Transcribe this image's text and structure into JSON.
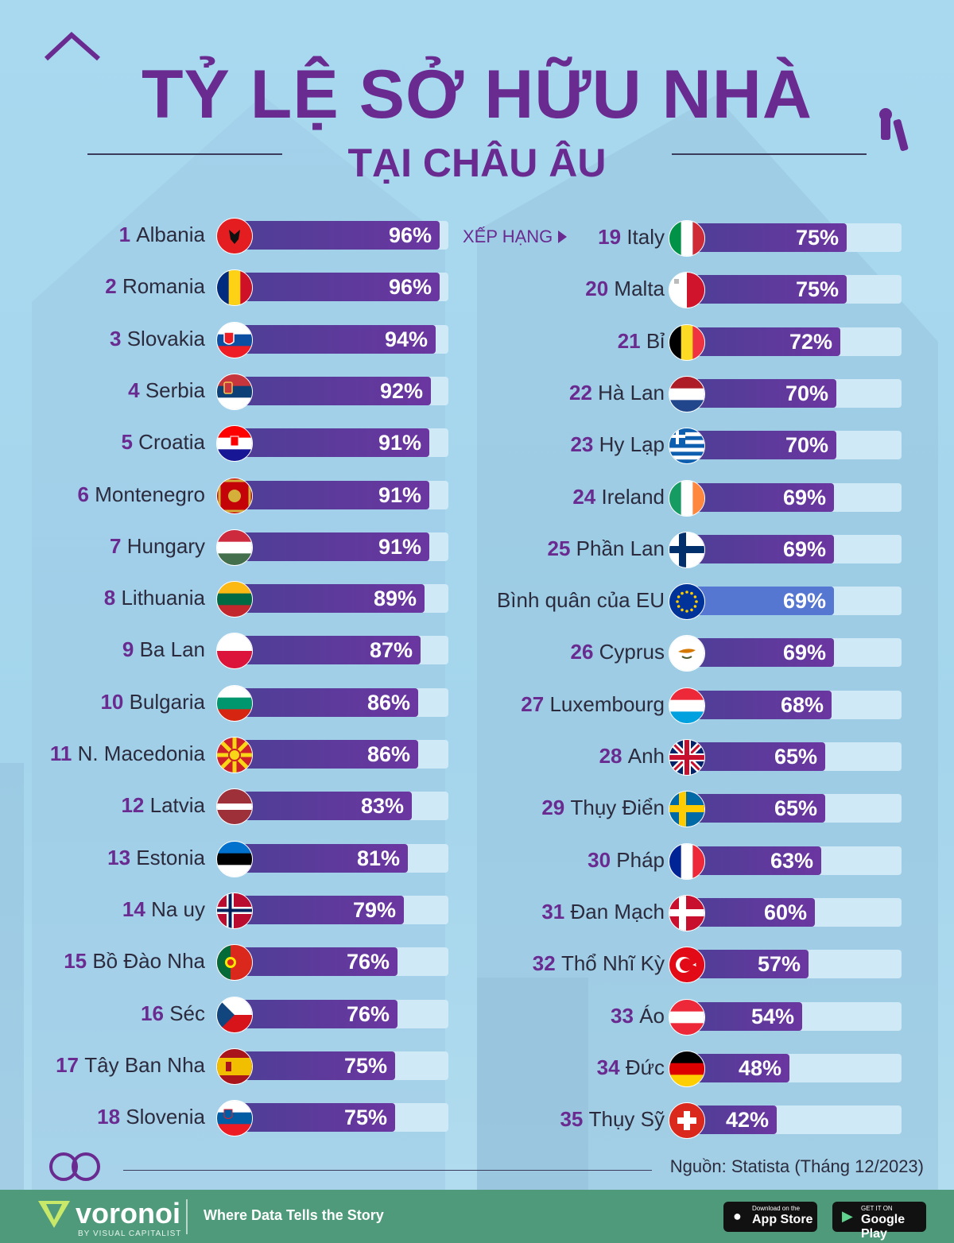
{
  "title": "TỶ LỆ SỞ HỮU NHÀ",
  "subtitle": "TẠI CHÂU ÂU",
  "rank_hint": "XẾP HẠNG",
  "source": "Nguồn: Statista (Tháng 12/2023)",
  "footer": {
    "brand": "voronoi",
    "brand_sub": "BY VISUAL CAPITALIST",
    "tagline": "Where Data Tells the Story",
    "appstore_small": "Download on the",
    "appstore_big": "App Store",
    "googleplay_small": "GET IT ON",
    "googleplay_big": "Google Play"
  },
  "colors": {
    "title": "#6a2b91",
    "bar": "#5a3a9b",
    "bar_avg": "#5577d1",
    "track": "#cfe9f6",
    "footer": "#4e9a7a"
  },
  "chart_data": {
    "type": "bar",
    "orientation": "horizontal",
    "xlim": [
      0,
      100
    ],
    "unit": "%",
    "items": [
      {
        "rank": "1",
        "country": "Albania",
        "value": 96,
        "label": "96%",
        "flag": "albania"
      },
      {
        "rank": "2",
        "country": "Romania",
        "value": 96,
        "label": "96%",
        "flag": "romania"
      },
      {
        "rank": "3",
        "country": "Slovakia",
        "value": 94,
        "label": "94%",
        "flag": "slovakia"
      },
      {
        "rank": "4",
        "country": "Serbia",
        "value": 92,
        "label": "92%",
        "flag": "serbia"
      },
      {
        "rank": "5",
        "country": "Croatia",
        "value": 91,
        "label": "91%",
        "flag": "croatia"
      },
      {
        "rank": "6",
        "country": "Montenegro",
        "value": 91,
        "label": "91%",
        "flag": "montenegro"
      },
      {
        "rank": "7",
        "country": "Hungary",
        "value": 91,
        "label": "91%",
        "flag": "hungary"
      },
      {
        "rank": "8",
        "country": "Lithuania",
        "value": 89,
        "label": "89%",
        "flag": "lithuania"
      },
      {
        "rank": "9",
        "country": "Ba Lan",
        "value": 87,
        "label": "87%",
        "flag": "poland"
      },
      {
        "rank": "10",
        "country": "Bulgaria",
        "value": 86,
        "label": "86%",
        "flag": "bulgaria"
      },
      {
        "rank": "11",
        "country": "N. Macedonia",
        "value": 86,
        "label": "86%",
        "flag": "macedonia"
      },
      {
        "rank": "12",
        "country": "Latvia",
        "value": 83,
        "label": "83%",
        "flag": "latvia"
      },
      {
        "rank": "13",
        "country": "Estonia",
        "value": 81,
        "label": "81%",
        "flag": "estonia"
      },
      {
        "rank": "14",
        "country": "Na uy",
        "value": 79,
        "label": "79%",
        "flag": "norway"
      },
      {
        "rank": "15",
        "country": "Bồ Đào Nha",
        "value": 76,
        "label": "76%",
        "flag": "portugal"
      },
      {
        "rank": "16",
        "country": "Séc",
        "value": 76,
        "label": "76%",
        "flag": "czechia"
      },
      {
        "rank": "17",
        "country": "Tây Ban Nha",
        "value": 75,
        "label": "75%",
        "flag": "spain"
      },
      {
        "rank": "18",
        "country": "Slovenia",
        "value": 75,
        "label": "75%",
        "flag": "slovenia"
      },
      {
        "rank": "19",
        "country": "Italy",
        "value": 75,
        "label": "75%",
        "flag": "italy"
      },
      {
        "rank": "20",
        "country": "Malta",
        "value": 75,
        "label": "75%",
        "flag": "malta"
      },
      {
        "rank": "21",
        "country": "Bỉ",
        "value": 72,
        "label": "72%",
        "flag": "belgium"
      },
      {
        "rank": "22",
        "country": "Hà Lan",
        "value": 70,
        "label": "70%",
        "flag": "netherlands"
      },
      {
        "rank": "23",
        "country": "Hy Lạp",
        "value": 70,
        "label": "70%",
        "flag": "greece"
      },
      {
        "rank": "24",
        "country": "Ireland",
        "value": 69,
        "label": "69%",
        "flag": "ireland"
      },
      {
        "rank": "25",
        "country": "Phần Lan",
        "value": 69,
        "label": "69%",
        "flag": "finland"
      },
      {
        "rank": "",
        "country": "Bình quân của EU",
        "value": 69,
        "label": "69%",
        "flag": "eu",
        "highlight": true
      },
      {
        "rank": "26",
        "country": "Cyprus",
        "value": 69,
        "label": "69%",
        "flag": "cyprus"
      },
      {
        "rank": "27",
        "country": "Luxembourg",
        "value": 68,
        "label": "68%",
        "flag": "luxembourg"
      },
      {
        "rank": "28",
        "country": "Anh",
        "value": 65,
        "label": "65%",
        "flag": "uk"
      },
      {
        "rank": "29",
        "country": "Thụy Điển",
        "value": 65,
        "label": "65%",
        "flag": "sweden"
      },
      {
        "rank": "30",
        "country": "Pháp",
        "value": 63,
        "label": "63%",
        "flag": "france"
      },
      {
        "rank": "31",
        "country": "Đan Mạch",
        "value": 60,
        "label": "60%",
        "flag": "denmark"
      },
      {
        "rank": "32",
        "country": "Thổ Nhĩ Kỳ",
        "value": 57,
        "label": "57%",
        "flag": "turkey"
      },
      {
        "rank": "33",
        "country": "Áo",
        "value": 54,
        "label": "54%",
        "flag": "austria"
      },
      {
        "rank": "34",
        "country": "Đức",
        "value": 48,
        "label": "48%",
        "flag": "germany"
      },
      {
        "rank": "35",
        "country": "Thụy Sỹ",
        "value": 42,
        "label": "42%",
        "flag": "switzerland"
      }
    ]
  }
}
